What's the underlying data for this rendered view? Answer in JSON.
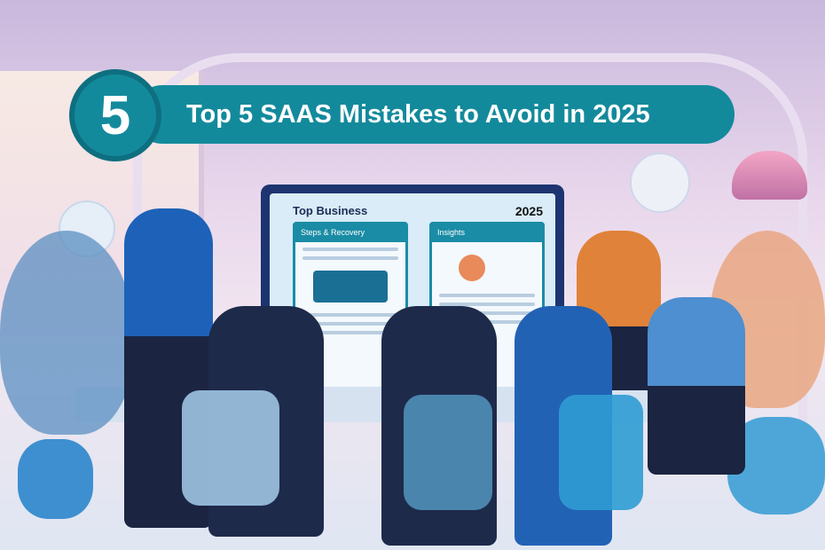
{
  "banner": {
    "number": "5",
    "title": "Top 5 SAAS Mistakes to Avoid in 2025",
    "color": "#138a9c"
  },
  "screen": {
    "title": "Top Business",
    "year": "2025",
    "panel_left": "Steps & Recovery",
    "panel_right": "Insights"
  }
}
